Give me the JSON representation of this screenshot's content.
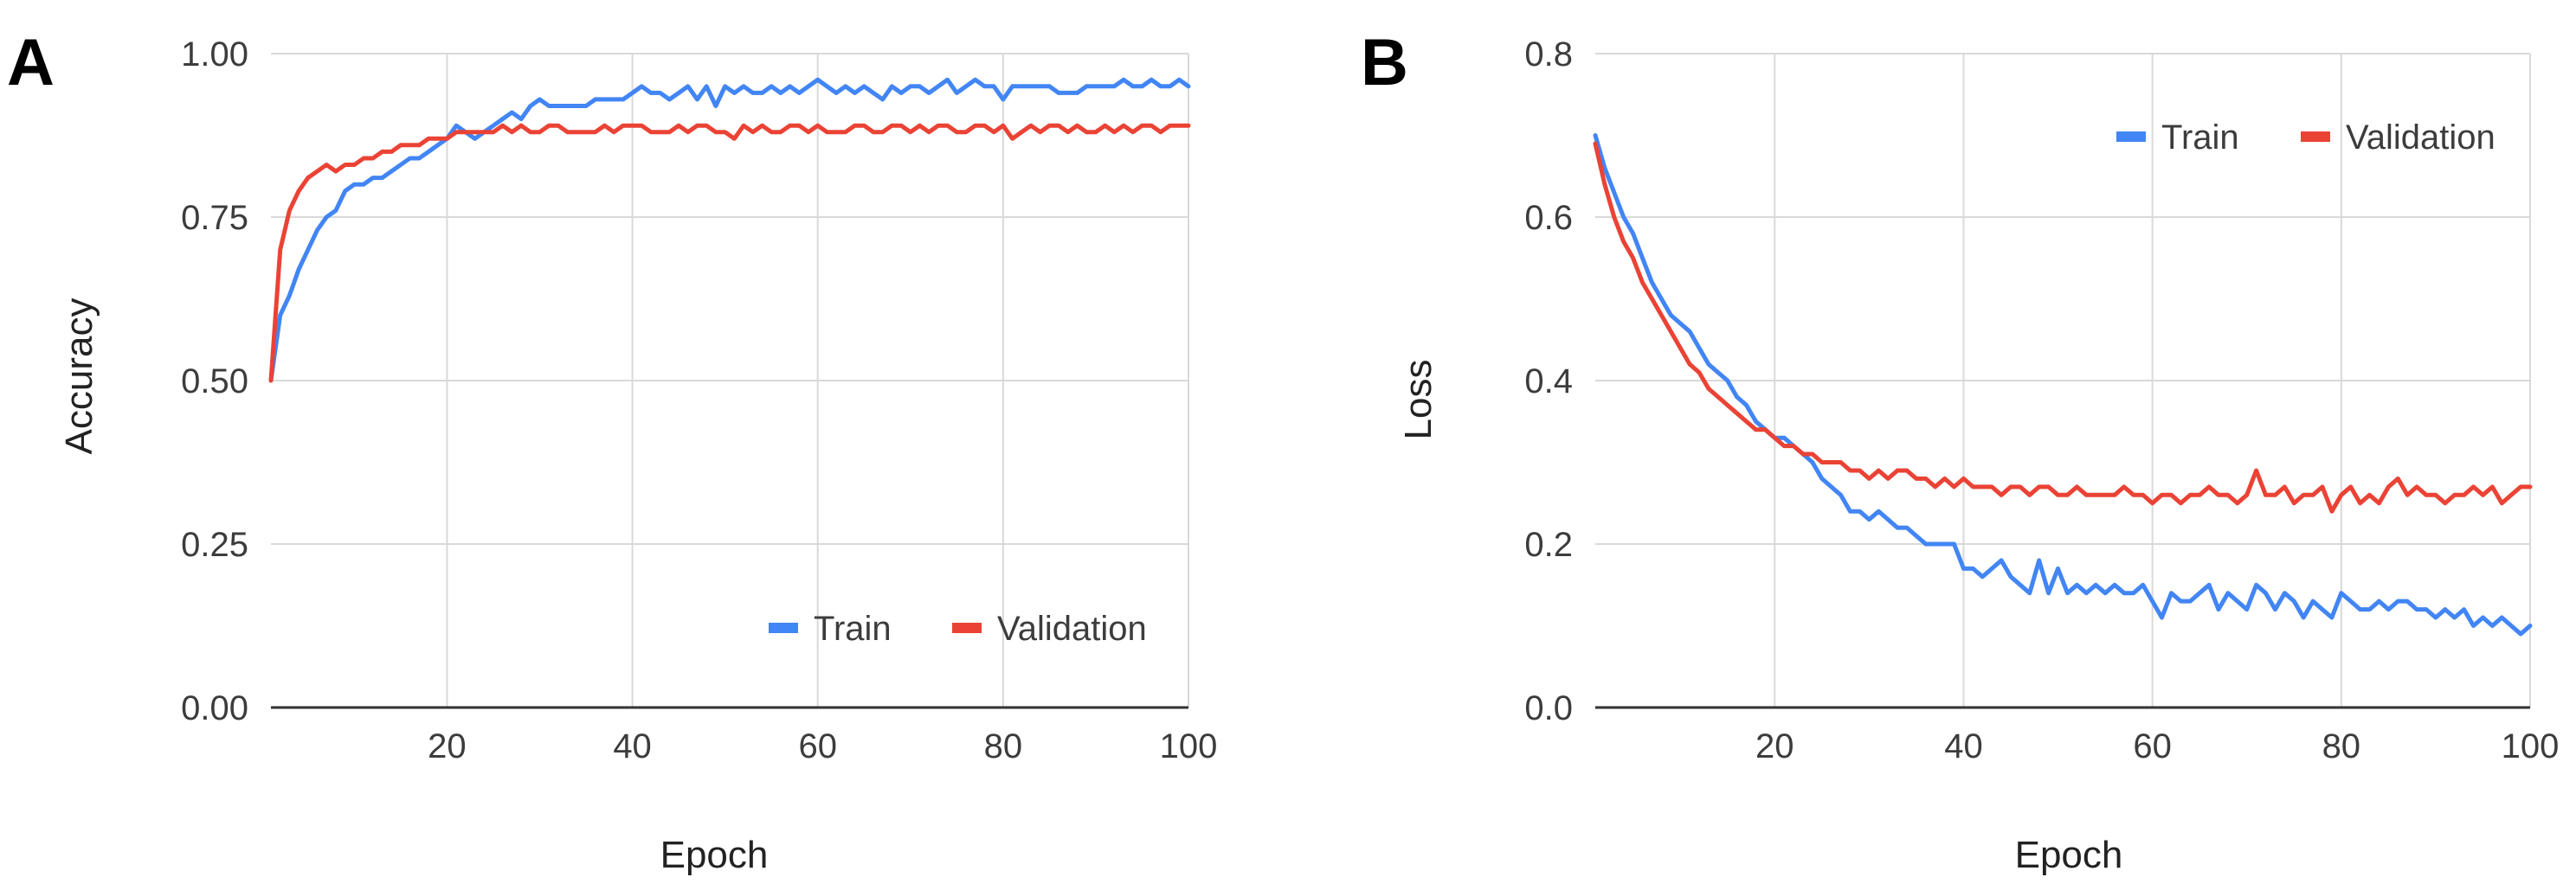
{
  "chart_data": [
    {
      "type": "line",
      "panel": "A",
      "title": "",
      "xlabel": "Epoch",
      "ylabel": "Accuracy",
      "xlim": [
        1,
        100
      ],
      "ylim": [
        0,
        1
      ],
      "xticks": [
        "20",
        "40",
        "60",
        "80",
        "100"
      ],
      "yticks": [
        "0.00",
        "0.25",
        "0.50",
        "0.75",
        "1.00"
      ],
      "grid": true,
      "legend_position": "bottom-right",
      "series": [
        {
          "name": "Train",
          "color": "#4285F4",
          "values": [
            0.5,
            0.6,
            0.63,
            0.67,
            0.7,
            0.73,
            0.75,
            0.76,
            0.79,
            0.8,
            0.8,
            0.81,
            0.81,
            0.82,
            0.83,
            0.84,
            0.84,
            0.85,
            0.86,
            0.87,
            0.89,
            0.88,
            0.87,
            0.88,
            0.89,
            0.9,
            0.91,
            0.9,
            0.92,
            0.93,
            0.92,
            0.92,
            0.92,
            0.92,
            0.92,
            0.93,
            0.93,
            0.93,
            0.93,
            0.94,
            0.95,
            0.94,
            0.94,
            0.93,
            0.94,
            0.95,
            0.93,
            0.95,
            0.92,
            0.95,
            0.94,
            0.95,
            0.94,
            0.94,
            0.95,
            0.94,
            0.95,
            0.94,
            0.95,
            0.96,
            0.95,
            0.94,
            0.95,
            0.94,
            0.95,
            0.94,
            0.93,
            0.95,
            0.94,
            0.95,
            0.95,
            0.94,
            0.95,
            0.96,
            0.94,
            0.95,
            0.96,
            0.95,
            0.95,
            0.93,
            0.95,
            0.95,
            0.95,
            0.95,
            0.95,
            0.94,
            0.94,
            0.94,
            0.95,
            0.95,
            0.95,
            0.95,
            0.96,
            0.95,
            0.95,
            0.96,
            0.95,
            0.95,
            0.96,
            0.95
          ]
        },
        {
          "name": "Validation",
          "color": "#EA4335",
          "values": [
            0.5,
            0.7,
            0.76,
            0.79,
            0.81,
            0.82,
            0.83,
            0.82,
            0.83,
            0.83,
            0.84,
            0.84,
            0.85,
            0.85,
            0.86,
            0.86,
            0.86,
            0.87,
            0.87,
            0.87,
            0.88,
            0.88,
            0.88,
            0.88,
            0.88,
            0.89,
            0.88,
            0.89,
            0.88,
            0.88,
            0.89,
            0.89,
            0.88,
            0.88,
            0.88,
            0.88,
            0.89,
            0.88,
            0.89,
            0.89,
            0.89,
            0.88,
            0.88,
            0.88,
            0.89,
            0.88,
            0.89,
            0.89,
            0.88,
            0.88,
            0.87,
            0.89,
            0.88,
            0.89,
            0.88,
            0.88,
            0.89,
            0.89,
            0.88,
            0.89,
            0.88,
            0.88,
            0.88,
            0.89,
            0.89,
            0.88,
            0.88,
            0.89,
            0.89,
            0.88,
            0.89,
            0.88,
            0.89,
            0.89,
            0.88,
            0.88,
            0.89,
            0.89,
            0.88,
            0.89,
            0.87,
            0.88,
            0.89,
            0.88,
            0.89,
            0.89,
            0.88,
            0.89,
            0.88,
            0.88,
            0.89,
            0.88,
            0.89,
            0.88,
            0.89,
            0.89,
            0.88,
            0.89,
            0.89,
            0.89
          ]
        }
      ]
    },
    {
      "type": "line",
      "panel": "B",
      "title": "",
      "xlabel": "Epoch",
      "ylabel": "Loss",
      "xlim": [
        1,
        100
      ],
      "ylim": [
        0,
        0.8
      ],
      "xticks": [
        "20",
        "40",
        "60",
        "80",
        "100"
      ],
      "yticks": [
        "0.0",
        "0.2",
        "0.4",
        "0.6",
        "0.8"
      ],
      "grid": true,
      "legend_position": "top-right",
      "series": [
        {
          "name": "Train",
          "color": "#4285F4",
          "values": [
            0.7,
            0.66,
            0.63,
            0.6,
            0.58,
            0.55,
            0.52,
            0.5,
            0.48,
            0.47,
            0.46,
            0.44,
            0.42,
            0.41,
            0.4,
            0.38,
            0.37,
            0.35,
            0.34,
            0.33,
            0.33,
            0.32,
            0.31,
            0.3,
            0.28,
            0.27,
            0.26,
            0.24,
            0.24,
            0.23,
            0.24,
            0.23,
            0.22,
            0.22,
            0.21,
            0.2,
            0.2,
            0.2,
            0.2,
            0.17,
            0.17,
            0.16,
            0.17,
            0.18,
            0.16,
            0.15,
            0.14,
            0.18,
            0.14,
            0.17,
            0.14,
            0.15,
            0.14,
            0.15,
            0.14,
            0.15,
            0.14,
            0.14,
            0.15,
            0.13,
            0.11,
            0.14,
            0.13,
            0.13,
            0.14,
            0.15,
            0.12,
            0.14,
            0.13,
            0.12,
            0.15,
            0.14,
            0.12,
            0.14,
            0.13,
            0.11,
            0.13,
            0.12,
            0.11,
            0.14,
            0.13,
            0.12,
            0.12,
            0.13,
            0.12,
            0.13,
            0.13,
            0.12,
            0.12,
            0.11,
            0.12,
            0.11,
            0.12,
            0.1,
            0.11,
            0.1,
            0.11,
            0.1,
            0.09,
            0.1
          ]
        },
        {
          "name": "Validation",
          "color": "#EA4335",
          "values": [
            0.69,
            0.64,
            0.6,
            0.57,
            0.55,
            0.52,
            0.5,
            0.48,
            0.46,
            0.44,
            0.42,
            0.41,
            0.39,
            0.38,
            0.37,
            0.36,
            0.35,
            0.34,
            0.34,
            0.33,
            0.32,
            0.32,
            0.31,
            0.31,
            0.3,
            0.3,
            0.3,
            0.29,
            0.29,
            0.28,
            0.29,
            0.28,
            0.29,
            0.29,
            0.28,
            0.28,
            0.27,
            0.28,
            0.27,
            0.28,
            0.27,
            0.27,
            0.27,
            0.26,
            0.27,
            0.27,
            0.26,
            0.27,
            0.27,
            0.26,
            0.26,
            0.27,
            0.26,
            0.26,
            0.26,
            0.26,
            0.27,
            0.26,
            0.26,
            0.25,
            0.26,
            0.26,
            0.25,
            0.26,
            0.26,
            0.27,
            0.26,
            0.26,
            0.25,
            0.26,
            0.29,
            0.26,
            0.26,
            0.27,
            0.25,
            0.26,
            0.26,
            0.27,
            0.24,
            0.26,
            0.27,
            0.25,
            0.26,
            0.25,
            0.27,
            0.28,
            0.26,
            0.27,
            0.26,
            0.26,
            0.25,
            0.26,
            0.26,
            0.27,
            0.26,
            0.27,
            0.25,
            0.26,
            0.27,
            0.27
          ]
        }
      ]
    }
  ]
}
